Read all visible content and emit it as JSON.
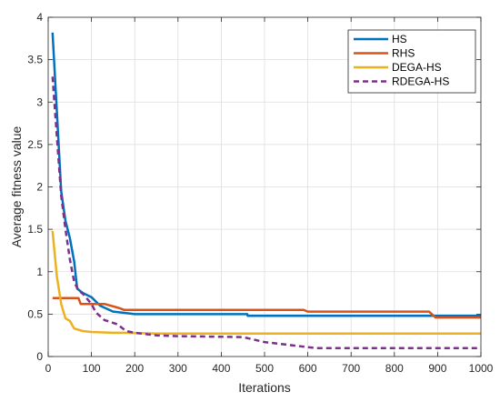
{
  "chart_data": {
    "type": "line",
    "title": "",
    "xlabel": "Iterations",
    "ylabel": "Average fitness value",
    "xlim": [
      0,
      1000
    ],
    "ylim": [
      0,
      4
    ],
    "xticks": [
      0,
      100,
      200,
      300,
      400,
      500,
      600,
      700,
      800,
      900,
      1000
    ],
    "yticks": [
      0,
      0.5,
      1,
      1.5,
      2,
      2.5,
      3,
      3.5,
      4
    ],
    "ytick_labels": [
      "0",
      "0.5",
      "1",
      "1.5",
      "2",
      "2.5",
      "3",
      "3.5",
      "4"
    ],
    "grid": true,
    "legend_position": "top-right",
    "series": [
      {
        "name": "HS",
        "color": "#0072BD",
        "dash": "solid",
        "points": [
          [
            10,
            3.82
          ],
          [
            20,
            2.9
          ],
          [
            30,
            1.95
          ],
          [
            40,
            1.6
          ],
          [
            50,
            1.4
          ],
          [
            60,
            1.12
          ],
          [
            67,
            0.8
          ],
          [
            80,
            0.75
          ],
          [
            100,
            0.7
          ],
          [
            120,
            0.6
          ],
          [
            150,
            0.53
          ],
          [
            200,
            0.5
          ],
          [
            460,
            0.5
          ],
          [
            461,
            0.48
          ],
          [
            1000,
            0.48
          ]
        ]
      },
      {
        "name": "RHS",
        "color": "#D95319",
        "dash": "solid",
        "points": [
          [
            10,
            0.69
          ],
          [
            70,
            0.69
          ],
          [
            75,
            0.62
          ],
          [
            130,
            0.62
          ],
          [
            165,
            0.57
          ],
          [
            175,
            0.55
          ],
          [
            590,
            0.55
          ],
          [
            600,
            0.53
          ],
          [
            880,
            0.53
          ],
          [
            895,
            0.46
          ],
          [
            1000,
            0.46
          ]
        ]
      },
      {
        "name": "DEGA-HS",
        "color": "#EDB120",
        "dash": "solid",
        "points": [
          [
            10,
            1.48
          ],
          [
            20,
            0.95
          ],
          [
            30,
            0.62
          ],
          [
            40,
            0.45
          ],
          [
            50,
            0.42
          ],
          [
            60,
            0.33
          ],
          [
            80,
            0.3
          ],
          [
            100,
            0.29
          ],
          [
            150,
            0.28
          ],
          [
            180,
            0.28
          ],
          [
            250,
            0.27
          ],
          [
            1000,
            0.27
          ]
        ]
      },
      {
        "name": "RDEGA-HS",
        "color": "#7E2F8E",
        "dash": "dashed",
        "points": [
          [
            10,
            3.3
          ],
          [
            20,
            2.6
          ],
          [
            30,
            1.9
          ],
          [
            40,
            1.5
          ],
          [
            50,
            1.15
          ],
          [
            60,
            0.88
          ],
          [
            70,
            0.78
          ],
          [
            80,
            0.74
          ],
          [
            100,
            0.62
          ],
          [
            110,
            0.52
          ],
          [
            130,
            0.43
          ],
          [
            160,
            0.38
          ],
          [
            180,
            0.3
          ],
          [
            200,
            0.28
          ],
          [
            250,
            0.25
          ],
          [
            300,
            0.24
          ],
          [
            450,
            0.23
          ],
          [
            500,
            0.17
          ],
          [
            600,
            0.11
          ],
          [
            620,
            0.1
          ],
          [
            1000,
            0.1
          ]
        ]
      }
    ]
  }
}
